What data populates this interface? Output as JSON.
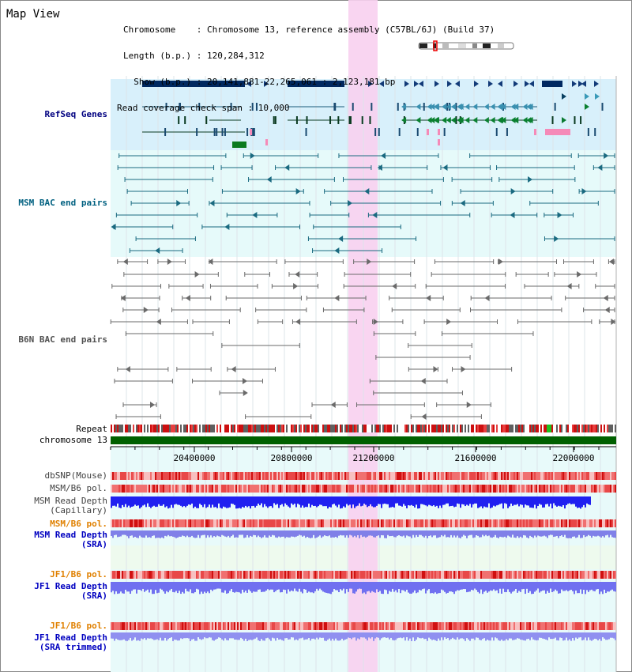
{
  "header": {
    "view_title": "Map View",
    "info_lines": [
      "Chromosome    : Chromosome 13, reference assembly (C57BL/6J) (Build 37)",
      "Length (b.p.) : 120,284,312",
      "  Show (b.p.) : 20,141,881-22,265,061 : 2,123,181 bp",
      "Read coverage check span : 10,000"
    ]
  },
  "tracks": {
    "refseq": "RefSeq Genes",
    "msm_bac": "MSM BAC end pairs",
    "b6n_bac": "B6N BAC end pairs",
    "repeat": "Repeat",
    "chromosome": "chromosome 13",
    "dbsnp": "dbSNP(Mouse)",
    "msm_b6_pol_1": "MSM/B6 pol.",
    "msm_read_depth_cap": "MSM Read Depth\n(Capillary)",
    "msm_b6_pol_2": "MSM/B6 pol.",
    "msm_read_depth_sra": "MSM Read Depth\n(SRA)",
    "jf1_b6_pol_1": "JF1/B6 pol.",
    "jf1_read_depth_sra": "JF1 Read Depth\n(SRA)",
    "jf1_b6_pol_2": "JF1/B6 pol.",
    "jf1_read_depth_trim": "JF1 Read Depth\n(SRA trimmed)"
  },
  "axis": {
    "ticks": [
      "20400000",
      "20800000",
      "21200000",
      "21600000",
      "22000000"
    ]
  },
  "colors": {
    "refseq_label": "#000080",
    "msm_label": "#006080",
    "b6n_label": "#505050",
    "msm_pol_label": "#e08000",
    "read_depth_label": "#0000c0",
    "highlight": "#f8d0f0"
  }
}
